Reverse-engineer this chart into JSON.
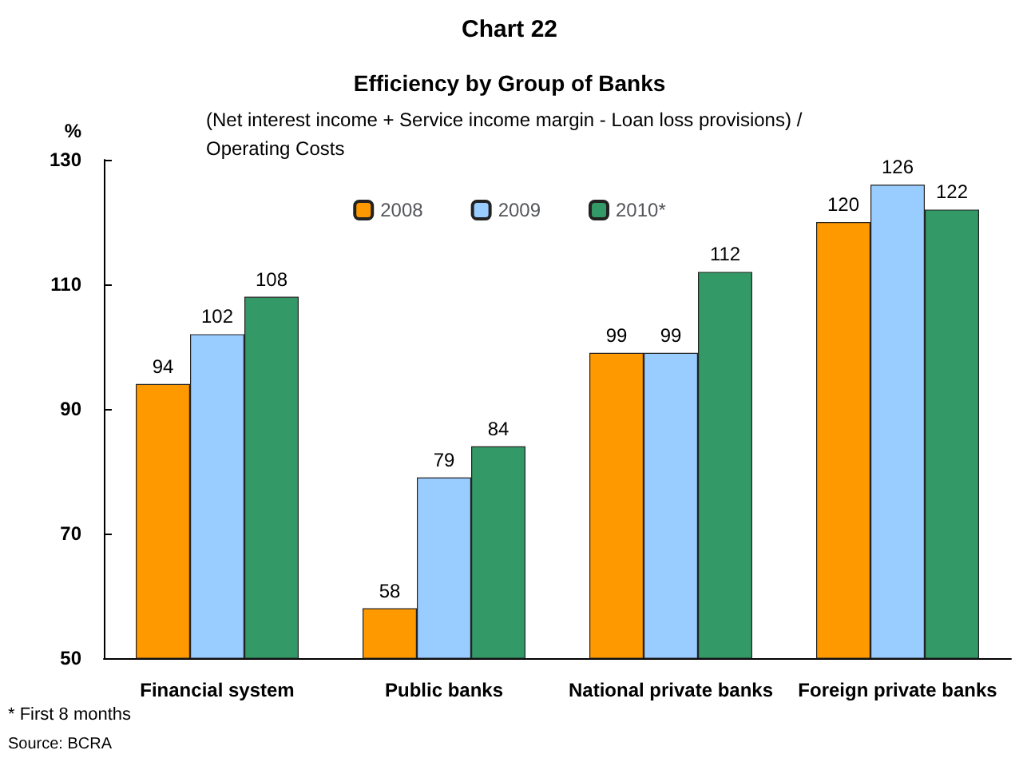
{
  "chart_data": {
    "type": "bar",
    "title": "Chart 22",
    "subtitle": "Efficiency by Group of Banks",
    "annotations": [
      "(Net interest income + Service income margin - Loan loss provisions) / Operating Costs",
      "* First 8 months",
      "Source: BCRA"
    ],
    "ylabel": "%",
    "categories": [
      "Financial system",
      "Public banks",
      "National private banks",
      "Foreign private banks"
    ],
    "series": [
      {
        "name": "2008",
        "color": "#ff9900",
        "values": [
          94,
          58,
          99,
          120
        ]
      },
      {
        "name": "2009",
        "color": "#99ccff",
        "values": [
          102,
          79,
          99,
          126
        ]
      },
      {
        "name": "2010*",
        "color": "#339966",
        "values": [
          108,
          84,
          112,
          122
        ]
      }
    ],
    "ylim": [
      50,
      130
    ],
    "yticks": [
      50,
      70,
      90,
      110,
      130
    ],
    "grid": false,
    "legend": "top",
    "data_labels": true
  }
}
